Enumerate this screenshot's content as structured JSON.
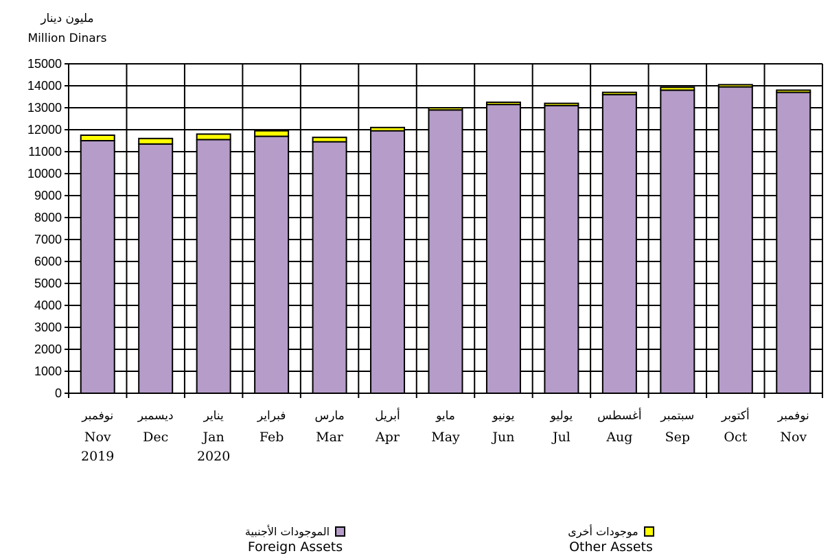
{
  "chart_data": {
    "type": "bar",
    "stacked": true,
    "unit_ar": "مليون دينار",
    "unit_en": "Million Dinars",
    "ylim": [
      0,
      15000
    ],
    "yticks": [
      0,
      1000,
      2000,
      3000,
      4000,
      5000,
      6000,
      7000,
      8000,
      9000,
      10000,
      11000,
      12000,
      13000,
      14000,
      15000
    ],
    "grid": true,
    "legend_position": "bottom",
    "categories": [
      {
        "ar": "نوفمبر",
        "en": "Nov",
        "year": "2019"
      },
      {
        "ar": "ديسمبر",
        "en": "Dec",
        "year": ""
      },
      {
        "ar": "يناير",
        "en": "Jan",
        "year": "2020"
      },
      {
        "ar": "فبراير",
        "en": "Feb",
        "year": ""
      },
      {
        "ar": "مارس",
        "en": "Mar",
        "year": ""
      },
      {
        "ar": "أبريل",
        "en": "Apr",
        "year": ""
      },
      {
        "ar": "مايو",
        "en": "May",
        "year": ""
      },
      {
        "ar": "يونيو",
        "en": "Jun",
        "year": ""
      },
      {
        "ar": "يوليو",
        "en": "Jul",
        "year": ""
      },
      {
        "ar": "أغسطس",
        "en": "Aug",
        "year": ""
      },
      {
        "ar": "سبتمبر",
        "en": "Sep",
        "year": ""
      },
      {
        "ar": "أكتوبر",
        "en": "Oct",
        "year": ""
      },
      {
        "ar": "نوفمبر",
        "en": "Nov",
        "year": ""
      }
    ],
    "series": [
      {
        "name_ar": "الموجودات الأجنبية",
        "name_en": "Foreign Assets",
        "color": "#b59cc9",
        "values": [
          11500,
          11350,
          11550,
          11700,
          11450,
          11950,
          12900,
          13150,
          13100,
          13600,
          13800,
          13950,
          13700
        ]
      },
      {
        "name_ar": "موجودات أخرى",
        "name_en": "Other Assets",
        "color": "#ffff00",
        "values": [
          250,
          250,
          250,
          250,
          200,
          150,
          100,
          100,
          100,
          100,
          130,
          100,
          100
        ]
      }
    ]
  }
}
